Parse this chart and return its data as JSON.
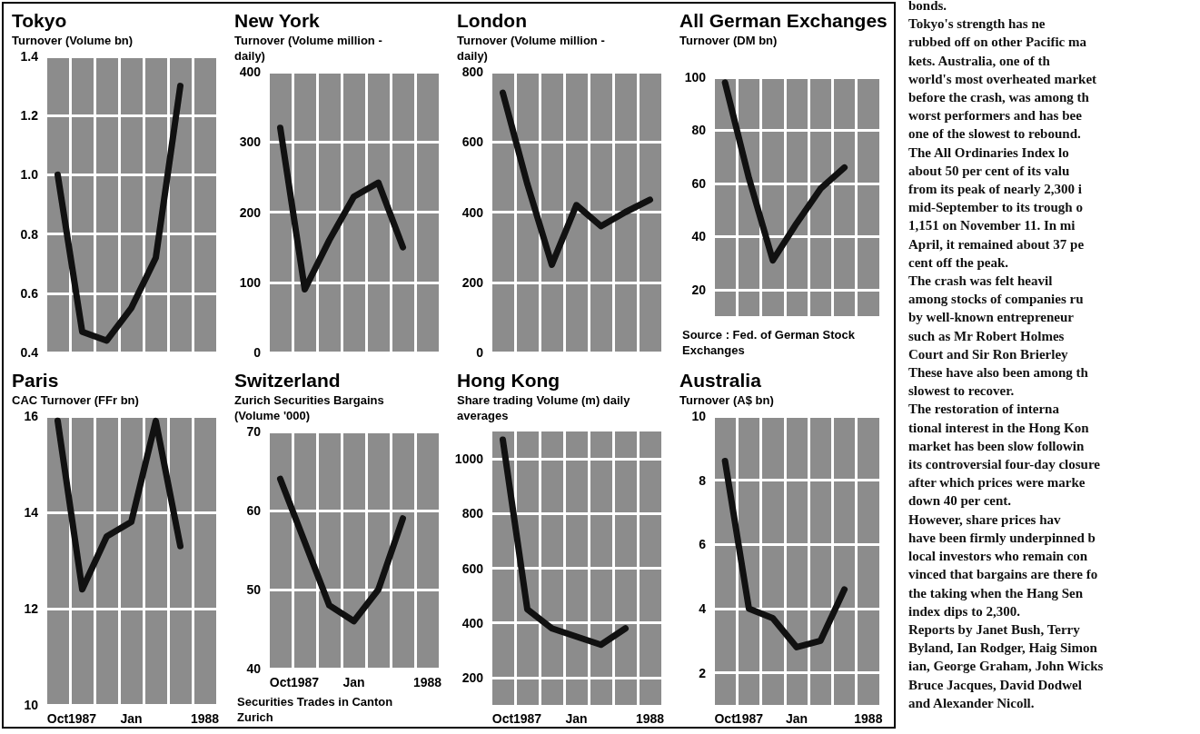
{
  "chart_data": [
    {
      "type": "line",
      "title": "Tokyo",
      "subtitle": "Turnover (Volume bn)",
      "categories": [
        null,
        null,
        null,
        null,
        null,
        null,
        null
      ],
      "series": [
        {
          "color": "#111111",
          "values": [
            1.0,
            0.47,
            0.44,
            0.55,
            0.72,
            1.3,
            null
          ]
        }
      ],
      "ylim": [
        0.4,
        1.4
      ],
      "yticks": [
        0.4,
        0.6,
        0.8,
        {
          "value": 1,
          "label": "1.0"
        },
        1.2,
        1.4
      ],
      "grid": true,
      "marker": "none",
      "line_style": "solid",
      "tick_labels": "y"
    },
    {
      "type": "line",
      "title": "New York",
      "subtitle": "Turnover (Volume million - daily)",
      "categories": [
        null,
        null,
        null,
        null,
        null,
        null,
        null
      ],
      "series": [
        {
          "color": "#111111",
          "values": [
            320,
            90,
            160,
            222,
            242,
            150,
            null
          ]
        }
      ],
      "ylim": [
        0,
        400
      ],
      "yticks": [
        0,
        100,
        200,
        300,
        400
      ],
      "grid": true,
      "marker": "none",
      "line_style": "solid",
      "tick_labels": "y"
    },
    {
      "type": "line",
      "title": "London",
      "subtitle": "Turnover (Volume million - daily)",
      "categories": [
        null,
        null,
        null,
        null,
        null,
        null,
        null
      ],
      "series": [
        {
          "color": "#111111",
          "values": [
            740,
            480,
            250,
            420,
            360,
            400,
            435
          ]
        }
      ],
      "ylim": [
        0,
        800
      ],
      "yticks": [
        0,
        200,
        400,
        600,
        800
      ],
      "grid": true,
      "marker": "none",
      "line_style": "solid",
      "tick_labels": "y"
    },
    {
      "type": "line",
      "title": "All German Exchanges",
      "subtitle": "Turnover (DM bn)",
      "categories": [
        null,
        null,
        null,
        null,
        null,
        null,
        null
      ],
      "series": [
        {
          "color": "#111111",
          "values": [
            98,
            62,
            31,
            45,
            58,
            66,
            null
          ]
        }
      ],
      "ylim": [
        10,
        100
      ],
      "yticks": [
        20,
        40,
        60,
        80,
        100
      ],
      "grid": true,
      "marker": "none",
      "line_style": "solid",
      "tick_labels": "y",
      "annotations": [
        "Source : Fed. of German Stock Exchanges"
      ]
    },
    {
      "type": "line",
      "title": "Paris",
      "subtitle": "CAC Turnover (FFr bn)",
      "categories": [
        "Oct",
        "1987",
        null,
        "Jan",
        null,
        null,
        "1988"
      ],
      "series": [
        {
          "color": "#111111",
          "values": [
            15.9,
            12.4,
            13.5,
            13.8,
            15.9,
            13.3,
            null
          ]
        }
      ],
      "ylim": [
        10,
        16
      ],
      "yticks": [
        10,
        12,
        14,
        16
      ],
      "grid": true,
      "marker": "none",
      "line_style": "solid"
    },
    {
      "type": "line",
      "title": "Switzerland",
      "subtitle": "Zurich Securities Bargains (Volume '000)",
      "categories": [
        "Oct",
        "1987",
        null,
        "Jan",
        null,
        null,
        "1988"
      ],
      "series": [
        {
          "color": "#111111",
          "values": [
            64,
            56,
            48,
            46,
            50,
            59,
            null
          ]
        }
      ],
      "ylim": [
        40,
        70
      ],
      "yticks": [
        40,
        50,
        60,
        70
      ],
      "grid": true,
      "marker": "none",
      "line_style": "solid",
      "annotations": [
        "Securities Trades in Canton Zurich"
      ]
    },
    {
      "type": "line",
      "title": "Hong Kong",
      "subtitle": "Share trading Volume (m) daily averages",
      "categories": [
        "Oct",
        "1987",
        null,
        "Jan",
        null,
        null,
        "1988"
      ],
      "series": [
        {
          "color": "#111111",
          "values": [
            1070,
            450,
            380,
            350,
            320,
            380,
            null
          ]
        }
      ],
      "ylim": [
        100,
        1100
      ],
      "yticks": [
        200,
        400,
        600,
        800,
        1000
      ],
      "grid": true,
      "marker": "none",
      "line_style": "solid"
    },
    {
      "type": "line",
      "title": "Australia",
      "subtitle": "Turnover (A$ bn)",
      "categories": [
        "Oct",
        "1987",
        null,
        "Jan",
        null,
        null,
        "1988"
      ],
      "series": [
        {
          "color": "#111111",
          "values": [
            8.6,
            4.0,
            3.7,
            2.8,
            3.0,
            4.6,
            null
          ]
        }
      ],
      "ylim": [
        1,
        10
      ],
      "yticks": [
        2,
        4,
        6,
        8,
        10
      ],
      "grid": true,
      "marker": "none",
      "line_style": "solid"
    },
    {
      "type": "other",
      "annotations": [
        "bonds.",
        "Tokyo's strength has ne",
        "rubbed off on other Pacific ma",
        "kets. Australia, one of th",
        "world's most overheated market",
        "before the crash, was among th",
        "worst performers and has bee",
        "one of the slowest to rebound.",
        "The All Ordinaries Index lo",
        "about 50 per cent of its valu",
        "from its peak of nearly 2,300 i",
        "mid-September to its trough o",
        "1,151 on November 11. In mi",
        "April, it remained about 37 pe",
        "cent off the peak.",
        "The crash was felt heavil",
        "among stocks of companies ru",
        "by well-known entrepreneur",
        "such as Mr Robert Holmes",
        "Court and Sir Ron Brierley",
        "These have also been among th",
        "slowest to recover.",
        "The restoration of interna",
        "tional interest in the Hong Kon",
        "market has been slow followin",
        "its controversial four-day closure",
        "after which prices were marke",
        "down 40 per cent.",
        "However, share prices hav",
        "have been firmly underpinned b",
        "local investors who remain con",
        "vinced that bargains are there fo",
        "the taking when the Hang Sen",
        "index dips to 2,300.",
        "Reports by Janet Bush, Terry",
        "Byland, Ian Rodger, Haig Simon",
        "ian, George Graham, John Wicks",
        "Bruce Jacques, David Dodwel",
        "and Alexander Nicoll."
      ]
    }
  ]
}
